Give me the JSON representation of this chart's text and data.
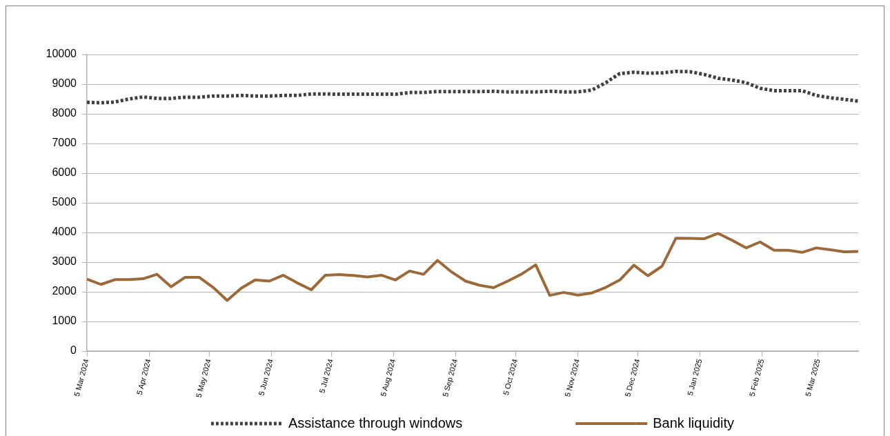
{
  "chart_data": {
    "type": "line",
    "x": [
      "2024-03-05",
      "2024-03-12",
      "2024-03-19",
      "2024-03-26",
      "2024-04-02",
      "2024-04-09",
      "2024-04-16",
      "2024-04-23",
      "2024-04-30",
      "2024-05-07",
      "2024-05-14",
      "2024-05-21",
      "2024-05-28",
      "2024-06-04",
      "2024-06-11",
      "2024-06-18",
      "2024-06-25",
      "2024-07-02",
      "2024-07-09",
      "2024-07-16",
      "2024-07-23",
      "2024-07-30",
      "2024-08-06",
      "2024-08-13",
      "2024-08-20",
      "2024-08-27",
      "2024-09-03",
      "2024-09-10",
      "2024-09-17",
      "2024-09-24",
      "2024-10-01",
      "2024-10-08",
      "2024-10-15",
      "2024-10-22",
      "2024-10-29",
      "2024-11-05",
      "2024-11-12",
      "2024-11-19",
      "2024-11-26",
      "2024-12-03",
      "2024-12-10",
      "2024-12-17",
      "2024-12-24",
      "2024-12-31",
      "2025-01-07",
      "2025-01-14",
      "2025-01-21",
      "2025-01-28",
      "2025-02-04",
      "2025-02-11",
      "2025-02-18",
      "2025-02-25",
      "2025-03-04",
      "2025-03-11",
      "2025-03-18",
      "2025-03-25"
    ],
    "series": [
      {
        "name": "Assistance through windows",
        "color": "#404040",
        "line_style": "dotted",
        "values": [
          8390,
          8370,
          8400,
          8500,
          8570,
          8520,
          8520,
          8560,
          8560,
          8600,
          8600,
          8620,
          8600,
          8600,
          8620,
          8620,
          8670,
          8670,
          8660,
          8660,
          8660,
          8660,
          8660,
          8720,
          8720,
          8750,
          8750,
          8750,
          8750,
          8760,
          8740,
          8740,
          8740,
          8760,
          8740,
          8740,
          8800,
          9050,
          9360,
          9400,
          9370,
          9380,
          9430,
          9420,
          9330,
          9200,
          9140,
          9050,
          8860,
          8780,
          8780,
          8780,
          8620,
          8540,
          8490,
          8430
        ]
      },
      {
        "name": "Bank liquidity",
        "color": "#9d6938",
        "line_style": "solid",
        "values": [
          2430,
          2250,
          2410,
          2410,
          2440,
          2590,
          2170,
          2490,
          2490,
          2150,
          1710,
          2120,
          2400,
          2360,
          2560,
          2300,
          2070,
          2560,
          2580,
          2550,
          2500,
          2560,
          2400,
          2700,
          2590,
          3060,
          2670,
          2360,
          2220,
          2140,
          2360,
          2600,
          2910,
          1880,
          1980,
          1890,
          1960,
          2150,
          2400,
          2900,
          2540,
          2860,
          3810,
          3800,
          3790,
          3970,
          3740,
          3480,
          3680,
          3400,
          3400,
          3330,
          3480,
          3420,
          3350,
          3360
        ]
      }
    ],
    "xlim": [
      "2024-03-05",
      "2025-03-25"
    ],
    "xticks": [
      {
        "value": "2024-03-05",
        "label": "5 Mar 2024"
      },
      {
        "value": "2024-04-05",
        "label": "5 Apr 2024"
      },
      {
        "value": "2024-05-05",
        "label": "5 May 2024"
      },
      {
        "value": "2024-06-05",
        "label": "5 Jun 2024"
      },
      {
        "value": "2024-07-05",
        "label": "5 Jul 2024"
      },
      {
        "value": "2024-08-05",
        "label": "5 Aug 2024"
      },
      {
        "value": "2024-09-05",
        "label": "5 Sep 2024"
      },
      {
        "value": "2024-10-05",
        "label": "5 Oct 2024"
      },
      {
        "value": "2024-11-05",
        "label": "5 Nov 2024"
      },
      {
        "value": "2024-12-05",
        "label": "5 Dec 2024"
      },
      {
        "value": "2025-01-05",
        "label": "5 Jan 2025"
      },
      {
        "value": "2025-02-05",
        "label": "5 Feb 2025"
      },
      {
        "value": "2025-03-05",
        "label": "5 Mar 2025"
      }
    ],
    "ylim": [
      0,
      10000
    ],
    "yticks": [
      0,
      1000,
      2000,
      3000,
      4000,
      5000,
      6000,
      7000,
      8000,
      9000,
      10000
    ],
    "grid": "y",
    "legend": "bottom",
    "marker": "none"
  }
}
